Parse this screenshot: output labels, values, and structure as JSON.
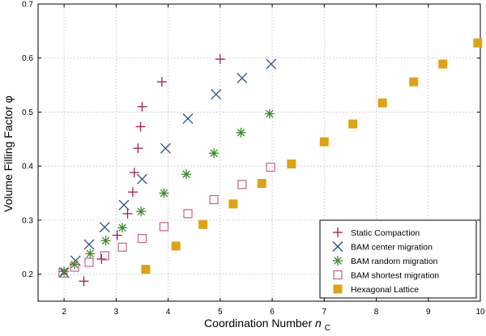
{
  "chart_data": {
    "type": "scatter",
    "title": "",
    "xlabel": "Coordination Number",
    "xlabel_symbol": "n",
    "xlabel_subscript": "C",
    "ylabel": "Volume Filling Factor φ",
    "xlim": [
      1.5,
      10
    ],
    "ylim": [
      0.15,
      0.7
    ],
    "xticks": [
      2,
      3,
      4,
      5,
      6,
      7,
      8,
      9,
      10
    ],
    "yticks": [
      0.2,
      0.3,
      0.4,
      0.5,
      0.6,
      0.7
    ],
    "xtick_labels": [
      "2",
      "3",
      "4",
      "5",
      "6",
      "7",
      "8",
      "9",
      "10"
    ],
    "ytick_labels": [
      "0.2",
      "0.3",
      "0.4",
      "0.5",
      "0.6",
      "0.7"
    ],
    "grid": true,
    "legend_position": "bottom-right",
    "series": [
      {
        "name": "Static Compaction",
        "marker": "plus",
        "color": "#a0204a",
        "x": [
          2.38,
          2.72,
          3.02,
          3.22,
          3.32,
          3.35,
          3.42,
          3.47,
          3.5,
          3.88,
          5.0
        ],
        "y": [
          0.187,
          0.228,
          0.272,
          0.312,
          0.352,
          0.388,
          0.433,
          0.473,
          0.51,
          0.556,
          0.598
        ]
      },
      {
        "name": "BAM center migration",
        "marker": "x",
        "color": "#2c4e85",
        "x": [
          2.0,
          2.22,
          2.48,
          2.78,
          3.15,
          3.5,
          3.95,
          4.38,
          4.92,
          5.42,
          5.98
        ],
        "y": [
          0.203,
          0.225,
          0.255,
          0.287,
          0.328,
          0.376,
          0.433,
          0.488,
          0.533,
          0.563,
          0.589
        ]
      },
      {
        "name": "BAM random migration",
        "marker": "asterisk",
        "color": "#3a8a2e",
        "x": [
          2.0,
          2.2,
          2.5,
          2.8,
          3.12,
          3.48,
          3.92,
          4.35,
          4.88,
          5.4,
          5.95
        ],
        "y": [
          0.205,
          0.218,
          0.238,
          0.262,
          0.286,
          0.316,
          0.35,
          0.385,
          0.424,
          0.462,
          0.497
        ]
      },
      {
        "name": "BAM shortest migration",
        "marker": "open-square",
        "color": "#c6628a",
        "x": [
          1.98,
          2.2,
          2.48,
          2.78,
          3.12,
          3.5,
          3.92,
          4.38,
          4.88,
          5.42,
          5.97
        ],
        "y": [
          0.202,
          0.213,
          0.222,
          0.234,
          0.25,
          0.266,
          0.288,
          0.312,
          0.338,
          0.366,
          0.398
        ]
      },
      {
        "name": "Hexagonal Lattice",
        "marker": "filled-square",
        "color": "#dea216",
        "x": [
          3.57,
          4.15,
          4.67,
          5.25,
          5.8,
          6.37,
          7.0,
          7.55,
          8.12,
          8.72,
          9.28,
          9.95
        ],
        "y": [
          0.209,
          0.252,
          0.292,
          0.33,
          0.368,
          0.404,
          0.445,
          0.478,
          0.517,
          0.556,
          0.589,
          0.628
        ]
      }
    ]
  }
}
